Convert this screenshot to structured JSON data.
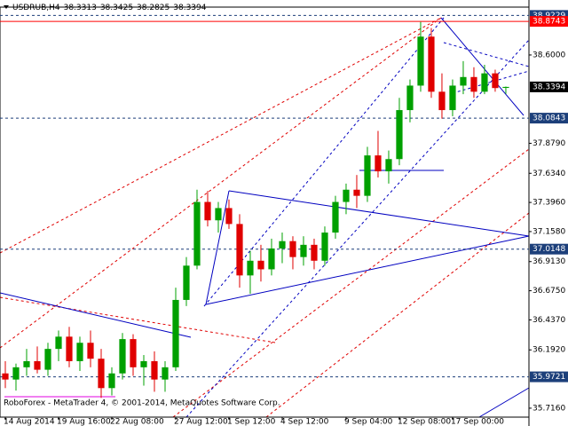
{
  "chart_data": {
    "type": "candlestick",
    "symbol": "USDRUB,H4",
    "footer": "RoboForex - MetaTrader 4, © 2001-2014, MetaQuotes Software Corp.",
    "up_color": "#00a000",
    "down_color": "#e00000",
    "open": [
      36.0,
      35.95,
      36.05,
      36.1,
      36.03,
      36.2,
      36.3,
      36.1,
      36.25,
      36.12,
      35.88,
      36.0,
      36.28,
      36.05,
      36.1,
      35.95,
      36.05,
      36.6,
      36.88,
      37.4,
      37.25,
      37.35,
      37.22,
      36.8,
      36.92,
      36.85,
      37.02,
      37.08,
      36.95,
      37.05,
      36.92,
      37.15,
      37.4,
      37.5,
      37.45,
      37.78,
      37.65,
      37.75,
      38.15,
      38.35,
      38.75,
      38.3,
      38.15,
      38.35,
      38.42,
      38.3,
      38.45,
      38.3313
    ],
    "high": [
      36.1,
      36.08,
      36.2,
      36.22,
      36.25,
      36.35,
      36.38,
      36.3,
      36.35,
      36.2,
      36.05,
      36.33,
      36.32,
      36.15,
      36.18,
      36.1,
      36.7,
      36.95,
      37.5,
      37.49,
      37.4,
      37.42,
      37.3,
      37.0,
      37.05,
      37.1,
      37.15,
      37.12,
      37.12,
      37.1,
      37.2,
      37.45,
      37.55,
      37.62,
      37.85,
      37.98,
      37.82,
      38.25,
      38.4,
      38.87,
      38.82,
      38.45,
      38.4,
      38.55,
      38.5,
      38.52,
      38.48,
      38.3425
    ],
    "low": [
      35.88,
      35.86,
      35.98,
      36.0,
      35.98,
      36.1,
      36.05,
      36.02,
      36.05,
      35.8,
      35.82,
      35.95,
      35.98,
      35.9,
      35.85,
      35.85,
      36.02,
      36.55,
      36.85,
      37.2,
      37.15,
      37.18,
      36.7,
      36.65,
      36.75,
      36.8,
      36.9,
      36.85,
      36.88,
      36.85,
      36.88,
      37.1,
      37.3,
      37.35,
      37.4,
      37.6,
      37.55,
      37.7,
      38.05,
      38.3,
      38.25,
      38.08,
      38.1,
      38.28,
      38.25,
      38.28,
      38.3,
      38.2825
    ],
    "close": [
      35.95,
      36.05,
      36.1,
      36.03,
      36.2,
      36.3,
      36.1,
      36.25,
      36.12,
      35.88,
      36.0,
      36.28,
      36.05,
      36.1,
      35.95,
      36.05,
      36.6,
      36.88,
      37.4,
      37.25,
      37.35,
      37.22,
      36.8,
      36.92,
      36.85,
      37.02,
      37.08,
      36.95,
      37.05,
      36.92,
      37.15,
      37.4,
      37.5,
      37.45,
      37.78,
      37.65,
      37.75,
      38.15,
      38.35,
      38.75,
      38.3,
      38.15,
      38.35,
      38.42,
      38.3,
      38.45,
      38.33,
      38.3394
    ],
    "xlim": [
      -0.5,
      49.17
    ],
    "xticks": [
      {
        "value": 0,
        "label": "14 Aug 2014"
      },
      {
        "value": 5,
        "label": "19 Aug 16:00"
      },
      {
        "value": 10,
        "label": "22 Aug 08:00"
      },
      {
        "value": 16,
        "label": "27 Aug 12:00"
      },
      {
        "value": 21,
        "label": "1 Sep 12:00"
      },
      {
        "value": 26,
        "label": "4 Sep 12:00"
      },
      {
        "value": 32,
        "label": "9 Sep 04:00"
      },
      {
        "value": 37,
        "label": "12 Sep 08:00"
      },
      {
        "value": 42,
        "label": "17 Sep 00:00"
      }
    ],
    "ylim": [
      35.643,
      38.991
    ],
    "yticks": [
      {
        "value": 38.6,
        "label": "38.6000"
      },
      {
        "value": 37.879,
        "label": "37.8790"
      },
      {
        "value": 37.634,
        "label": "37.6340"
      },
      {
        "value": 37.396,
        "label": "37.3960"
      },
      {
        "value": 37.158,
        "label": "37.1580"
      },
      {
        "value": 36.913,
        "label": "36.9130"
      },
      {
        "value": 36.675,
        "label": "36.6750"
      },
      {
        "value": 36.437,
        "label": "36.4370"
      },
      {
        "value": 36.192,
        "label": "36.1920"
      },
      {
        "value": 35.716,
        "label": "35.7160"
      }
    ],
    "levels": [
      {
        "value": 38.9229,
        "color": "#1c3f7a"
      },
      {
        "value": 38.8743,
        "color": "#ff0000"
      },
      {
        "value": 38.0843,
        "color": "#1c3f7a"
      },
      {
        "value": 37.0148,
        "color": "#1c3f7a"
      },
      {
        "value": 35.9721,
        "color": "#1c3f7a"
      }
    ]
  }
}
